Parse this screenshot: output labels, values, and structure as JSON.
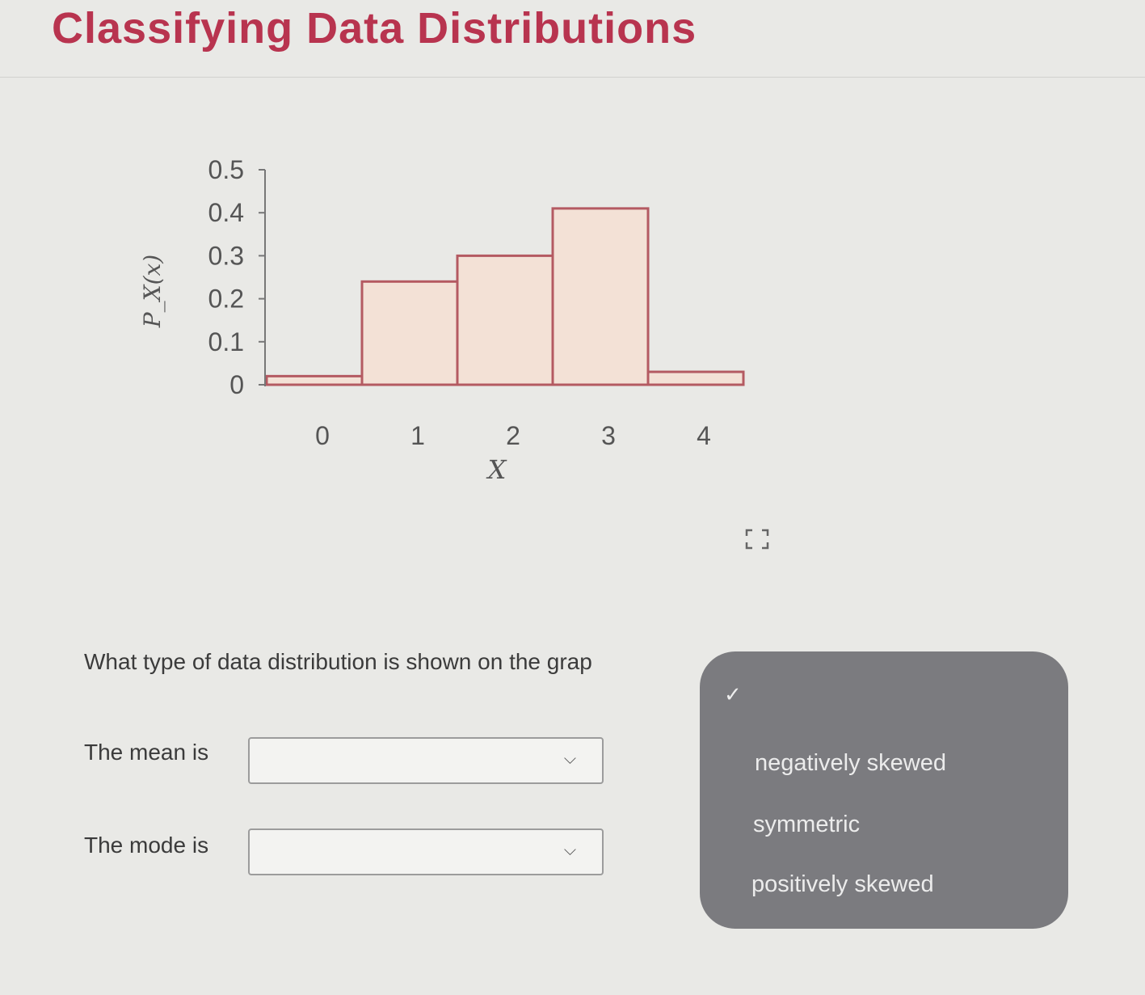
{
  "page": {
    "title": "Classifying Data Distributions"
  },
  "chart_data": {
    "type": "bar",
    "categories": [
      "0",
      "1",
      "2",
      "3",
      "4"
    ],
    "values": [
      0.02,
      0.24,
      0.3,
      0.41,
      0.03
    ],
    "xlabel": "X",
    "ylabel": "P_X(x)",
    "ylim": [
      0,
      0.5
    ],
    "yticks": [
      "0",
      "0.1",
      "0.2",
      "0.3",
      "0.4",
      "0.5"
    ],
    "grid": false,
    "bar_fill": "#f3e1d6",
    "bar_stroke": "#b45a62"
  },
  "question": {
    "text": "What type of data distribution is shown on the grap"
  },
  "fields": [
    {
      "label": "The mean is",
      "value": ""
    },
    {
      "label": "The mode is",
      "value": ""
    }
  ],
  "dropdown_menu": {
    "options": [
      "negatively skewed",
      "symmetric",
      "positively skewed"
    ]
  },
  "colors": {
    "title": "#b8344f",
    "menu_bg": "#7b7b7f"
  }
}
